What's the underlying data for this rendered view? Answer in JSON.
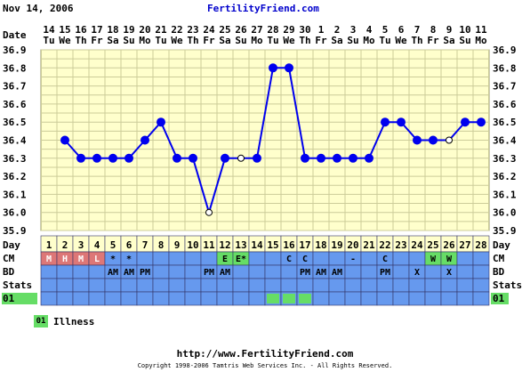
{
  "header": {
    "date": "Nov 14, 2006",
    "brand": "FertilityFriend.com"
  },
  "labels": {
    "date_row": "Date",
    "day_row": "Day",
    "cm_row": "CM",
    "bd_row": "BD",
    "stats_row": "Stats",
    "stats_code": "01"
  },
  "legend": {
    "code": "01",
    "label": "Illness"
  },
  "footer": {
    "url": "http://www.FertilityFriend.com",
    "copyright": "Copyright 1998-2006 Tamtris Web Services Inc. - All Rights Reserved."
  },
  "colors": {
    "grid_bg": "#ffffcc",
    "grid_line": "#cccc99",
    "line": "#0000ee",
    "rows_bg": "#6699ee",
    "day_bg": "#ffffcc",
    "menstruation": "#dd7777",
    "fertile_cm": "#66dd66",
    "stats_mark": "#66dd66"
  },
  "chart_data": {
    "type": "line",
    "x": [
      1,
      2,
      3,
      4,
      5,
      6,
      7,
      8,
      9,
      10,
      11,
      12,
      13,
      14,
      15,
      16,
      17,
      18,
      19,
      20,
      21,
      22,
      23,
      24,
      25,
      26,
      27,
      28
    ],
    "dates": [
      "14",
      "15",
      "16",
      "17",
      "18",
      "19",
      "20",
      "21",
      "22",
      "23",
      "24",
      "25",
      "26",
      "27",
      "28",
      "29",
      "30",
      "1",
      "2",
      "3",
      "4",
      "5",
      "6",
      "7",
      "8",
      "9",
      "10",
      "11"
    ],
    "weekdays": [
      "Tu",
      "We",
      "Th",
      "Fr",
      "Sa",
      "Su",
      "Mo",
      "Tu",
      "We",
      "Th",
      "Fr",
      "Sa",
      "Su",
      "Mo",
      "Tu",
      "We",
      "Th",
      "Fr",
      "Sa",
      "Su",
      "Mo",
      "Tu",
      "We",
      "Th",
      "Fr",
      "Sa",
      "Su",
      "Mo"
    ],
    "y_ticks": [
      "36.9",
      "36.8",
      "36.7",
      "36.6",
      "36.5",
      "36.4",
      "36.3",
      "36.2",
      "36.1",
      "36.0",
      "35.9"
    ],
    "ylim": [
      35.9,
      36.9
    ],
    "temps": [
      null,
      36.4,
      36.3,
      36.3,
      36.3,
      36.3,
      36.4,
      36.5,
      36.3,
      36.3,
      36.0,
      36.3,
      36.3,
      36.3,
      36.8,
      36.8,
      36.3,
      36.3,
      36.3,
      36.3,
      36.3,
      36.5,
      36.5,
      36.4,
      36.4,
      36.4,
      36.5,
      36.5
    ],
    "open_points": [
      11,
      13,
      26
    ],
    "cm": [
      "M",
      "H",
      "M",
      "L",
      "*",
      "*",
      "",
      "",
      "",
      "",
      "",
      "E",
      "E*",
      "",
      "",
      "C",
      "C",
      "",
      "",
      "-",
      "",
      "C",
      "",
      "",
      "W",
      "W",
      "",
      ""
    ],
    "bd": [
      "",
      "",
      "",
      "",
      "AM",
      "AM",
      "PM",
      "",
      "",
      "",
      "PM",
      "AM",
      "",
      "",
      "",
      "",
      "PM",
      "AM",
      "AM",
      "",
      "",
      "PM",
      "",
      "X",
      "",
      "X",
      "",
      ""
    ],
    "stats": [
      "",
      "",
      "",
      "",
      "",
      "",
      "",
      "",
      "",
      "",
      "",
      "",
      "",
      "",
      "1",
      "1",
      "1",
      "",
      "",
      "",
      "",
      "",
      "",
      "",
      "",
      "",
      "",
      ""
    ]
  }
}
